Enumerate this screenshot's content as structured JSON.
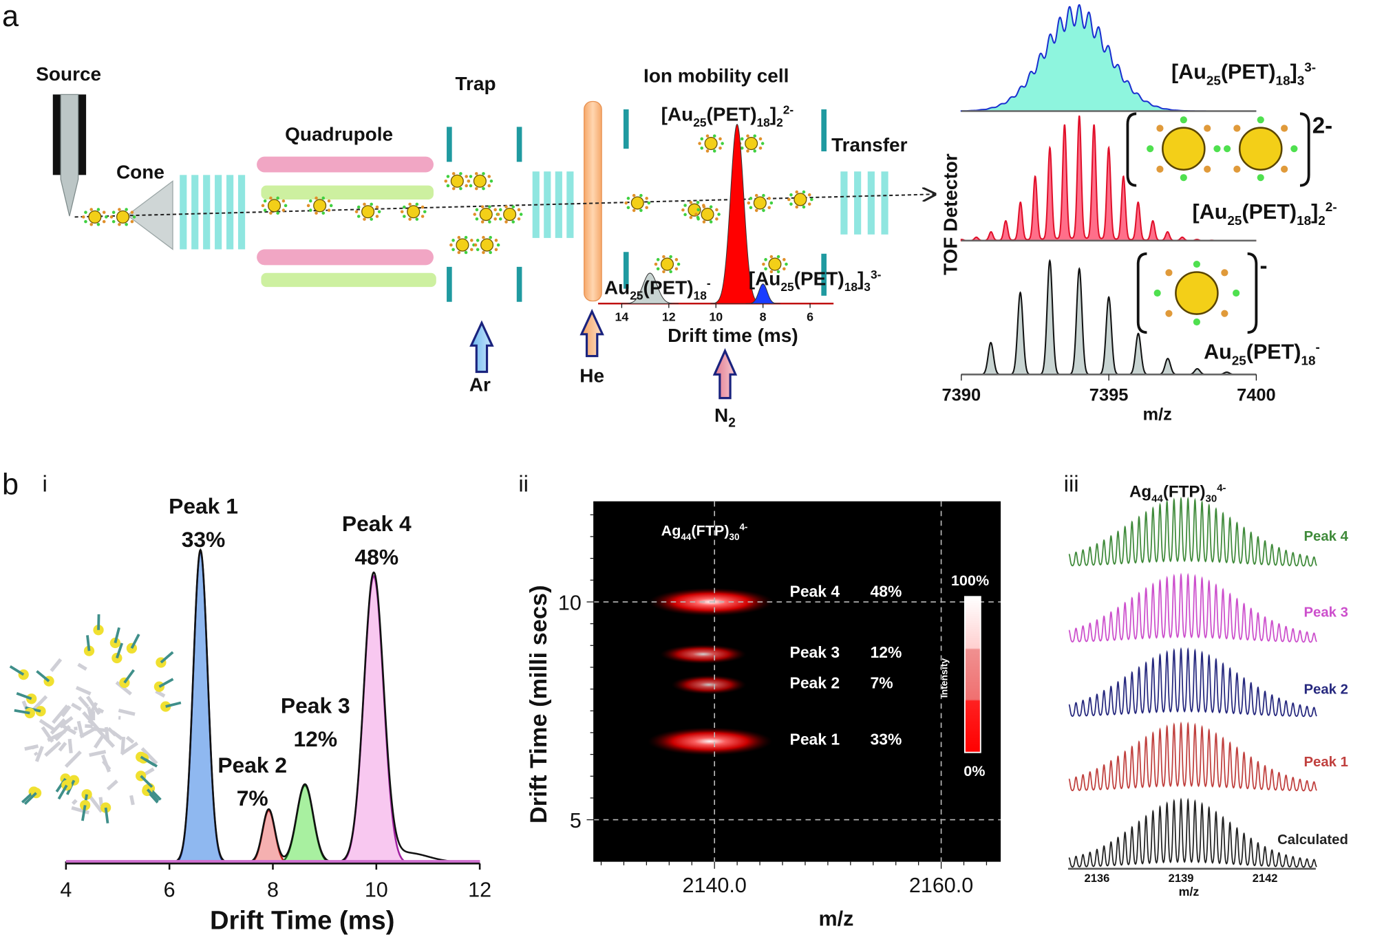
{
  "panels": {
    "a": "a",
    "b": "b",
    "i": "i",
    "ii": "ii",
    "iii": "iii"
  },
  "instrument": {
    "source": "Source",
    "cone": "Cone",
    "quadrupole": "Quadrupole",
    "trap": "Trap",
    "ion_mobility_cell": "Ion mobility cell",
    "transfer": "Transfer",
    "detector": "TOF Detector",
    "gases": {
      "ar": "Ar",
      "he": "He",
      "n2": "N",
      "n2_sub": "2"
    },
    "colors": {
      "rods_pink": "#f1a6c4",
      "rods_green": "#cdf0a0",
      "plates": "#8fe6e0",
      "electrodes": "#1f9aa0",
      "he_cell": "#f8b882",
      "arrow_outline": "#1a237e"
    }
  },
  "chart_data": [
    {
      "id": "drift-inset",
      "type": "area",
      "xlabel": "Drift time (ms)",
      "x_ticks": [
        14,
        12,
        10,
        8,
        6
      ],
      "xlim": [
        14.5,
        5.3
      ],
      "x_reversed": true,
      "peaks": [
        {
          "label": [
            [
              "Au",
              ""
            ],
            [
              "25",
              "sub"
            ],
            [
              "(PET)",
              ""
            ],
            [
              "18",
              "sub"
            ],
            [
              "-",
              "sup"
            ]
          ],
          "center": 12.8,
          "height": 0.17,
          "width": 0.3,
          "color": "#c8d4d2"
        },
        {
          "label": [
            [
              "[Au",
              ""
            ],
            [
              "25",
              "sub"
            ],
            [
              "(PET)",
              ""
            ],
            [
              "18",
              "sub"
            ],
            [
              "]",
              ""
            ],
            [
              "2",
              "sub"
            ],
            [
              "2-",
              "sup"
            ]
          ],
          "center": 9.1,
          "height": 1.0,
          "width": 0.28,
          "color": "#ff0000"
        },
        {
          "label": [
            [
              "[Au",
              ""
            ],
            [
              "25",
              "sub"
            ],
            [
              "(PET)",
              ""
            ],
            [
              "18",
              "sub"
            ],
            [
              "]",
              ""
            ],
            [
              "3",
              "sub"
            ],
            [
              "3-",
              "sup"
            ]
          ],
          "center": 8.0,
          "height": 0.11,
          "width": 0.18,
          "color": "#1a3cff"
        }
      ]
    },
    {
      "id": "mass-spectra",
      "type": "line",
      "xlabel": "m/z",
      "xlim": [
        7390,
        7400
      ],
      "x_ticks": [
        7390,
        7395,
        7400
      ],
      "series": [
        {
          "label": [
            [
              "[Au",
              ""
            ],
            [
              "25",
              "sub"
            ],
            [
              "(PET)",
              ""
            ],
            [
              "18",
              "sub"
            ],
            [
              "]",
              ""
            ],
            [
              "3",
              "sub"
            ],
            [
              "3-",
              "sup"
            ]
          ],
          "charge": 3,
          "center": 7393.9,
          "spread": 1.1,
          "line": "#1a2fd0",
          "fill": "#8ef5de"
        },
        {
          "label": [
            [
              "[Au",
              ""
            ],
            [
              "25",
              "sub"
            ],
            [
              "(PET)",
              ""
            ],
            [
              "18",
              "sub"
            ],
            [
              "]",
              ""
            ],
            [
              "2",
              "sub"
            ],
            [
              "2-",
              "sup"
            ]
          ],
          "charge": 2,
          "center": 7394.0,
          "spread": 1.3,
          "line": "#e0102a",
          "fill": "#ff6f8a",
          "bracket_charge": "2-"
        },
        {
          "label": [
            [
              "Au",
              ""
            ],
            [
              "25",
              "sub"
            ],
            [
              "(PET)",
              ""
            ],
            [
              "18",
              "sub"
            ],
            [
              "-",
              "sup"
            ]
          ],
          "charge": 1,
          "peaks_x": [
            7391,
            7392,
            7393,
            7394,
            7395,
            7396,
            7397,
            7398,
            7399
          ],
          "peaks_y": [
            0.28,
            0.72,
            1.0,
            0.93,
            0.68,
            0.36,
            0.14,
            0.05,
            0.02
          ],
          "line": "#111111",
          "fill": "#c8d4d2",
          "bracket_charge": "-"
        }
      ]
    },
    {
      "id": "drift-time-peaks",
      "type": "area",
      "xlabel": "Drift Time (ms)",
      "xlim": [
        4,
        12
      ],
      "x_ticks": [
        4,
        6,
        8,
        10,
        12
      ],
      "series": [
        {
          "name": "Peak 1",
          "percent": "33%",
          "center": 6.6,
          "height": 1.0,
          "width": 0.14,
          "line": "#1d2f8f",
          "fill": "#8fb8f0"
        },
        {
          "name": "Peak 2",
          "percent": "7%",
          "center": 7.92,
          "height": 0.17,
          "width": 0.12,
          "line": "#b81c1c",
          "fill": "#f5b0b0"
        },
        {
          "name": "Peak 3",
          "percent": "12%",
          "center": 8.62,
          "height": 0.25,
          "width": 0.16,
          "line": "#1a6a1a",
          "fill": "#a8f0a0"
        },
        {
          "name": "Peak 4",
          "percent": "48%",
          "center": 9.95,
          "height": 0.92,
          "width": 0.19,
          "line": "#a020a0",
          "fill": "#f8c8f0"
        }
      ]
    },
    {
      "id": "mobilogram-heatmap",
      "type": "heatmap",
      "title": [
        [
          "Ag",
          ""
        ],
        [
          "44",
          "sub"
        ],
        [
          "(FTP)",
          ""
        ],
        [
          "30",
          "sub"
        ],
        [
          "4-",
          "sup"
        ]
      ],
      "xlabel": "m/z",
      "ylabel": "Drift Time (milli secs)",
      "x_ticks": [
        2140.0,
        2160.0
      ],
      "x_tick_labels": [
        "2140.0",
        "2160.0"
      ],
      "y_ticks": [
        5,
        10
      ],
      "xlim": [
        2129.3,
        2165.2
      ],
      "ylim": [
        4.1,
        12.3
      ],
      "colorbar": {
        "label": "Intensity",
        "max": "100%",
        "min": "0%"
      },
      "spots": [
        {
          "name": "Peak 4",
          "percent": "48%",
          "drift_time": 10.0,
          "mz": 2139.7,
          "intensity": 1.0,
          "mz_spread": 5.5
        },
        {
          "name": "Peak 3",
          "percent": "12%",
          "drift_time": 8.8,
          "mz": 2139.0,
          "intensity": 0.6,
          "mz_spread": 3.8
        },
        {
          "name": "Peak 2",
          "percent": "7%",
          "drift_time": 8.1,
          "mz": 2139.5,
          "intensity": 0.5,
          "mz_spread": 3.3
        },
        {
          "name": "Peak 1",
          "percent": "33%",
          "drift_time": 6.8,
          "mz": 2139.6,
          "intensity": 0.95,
          "mz_spread": 5.5
        }
      ]
    },
    {
      "id": "isotope-patterns",
      "type": "line",
      "title": [
        [
          "Ag",
          ""
        ],
        [
          "44",
          "sub"
        ],
        [
          "(FTP)",
          ""
        ],
        [
          "30",
          "sub"
        ],
        [
          "4-",
          "sup"
        ]
      ],
      "xlabel": "m/z",
      "x_ticks": [
        2136,
        2139,
        2142
      ],
      "xlim": [
        2135.0,
        2143.85
      ],
      "peak_spacing": 0.25,
      "series": [
        {
          "name": "Peak 4",
          "center": 2139.1,
          "spread": 1.9,
          "color": "#3f8a3a"
        },
        {
          "name": "Peak 3",
          "center": 2139.1,
          "spread": 1.9,
          "color": "#cc4fcc"
        },
        {
          "name": "Peak 2",
          "center": 2139.1,
          "spread": 1.9,
          "color": "#26287e"
        },
        {
          "name": "Peak 1",
          "center": 2139.1,
          "spread": 1.9,
          "color": "#c0403e"
        },
        {
          "name": "Calculated",
          "center": 2139.1,
          "spread": 1.7,
          "color": "#222222"
        }
      ]
    }
  ]
}
